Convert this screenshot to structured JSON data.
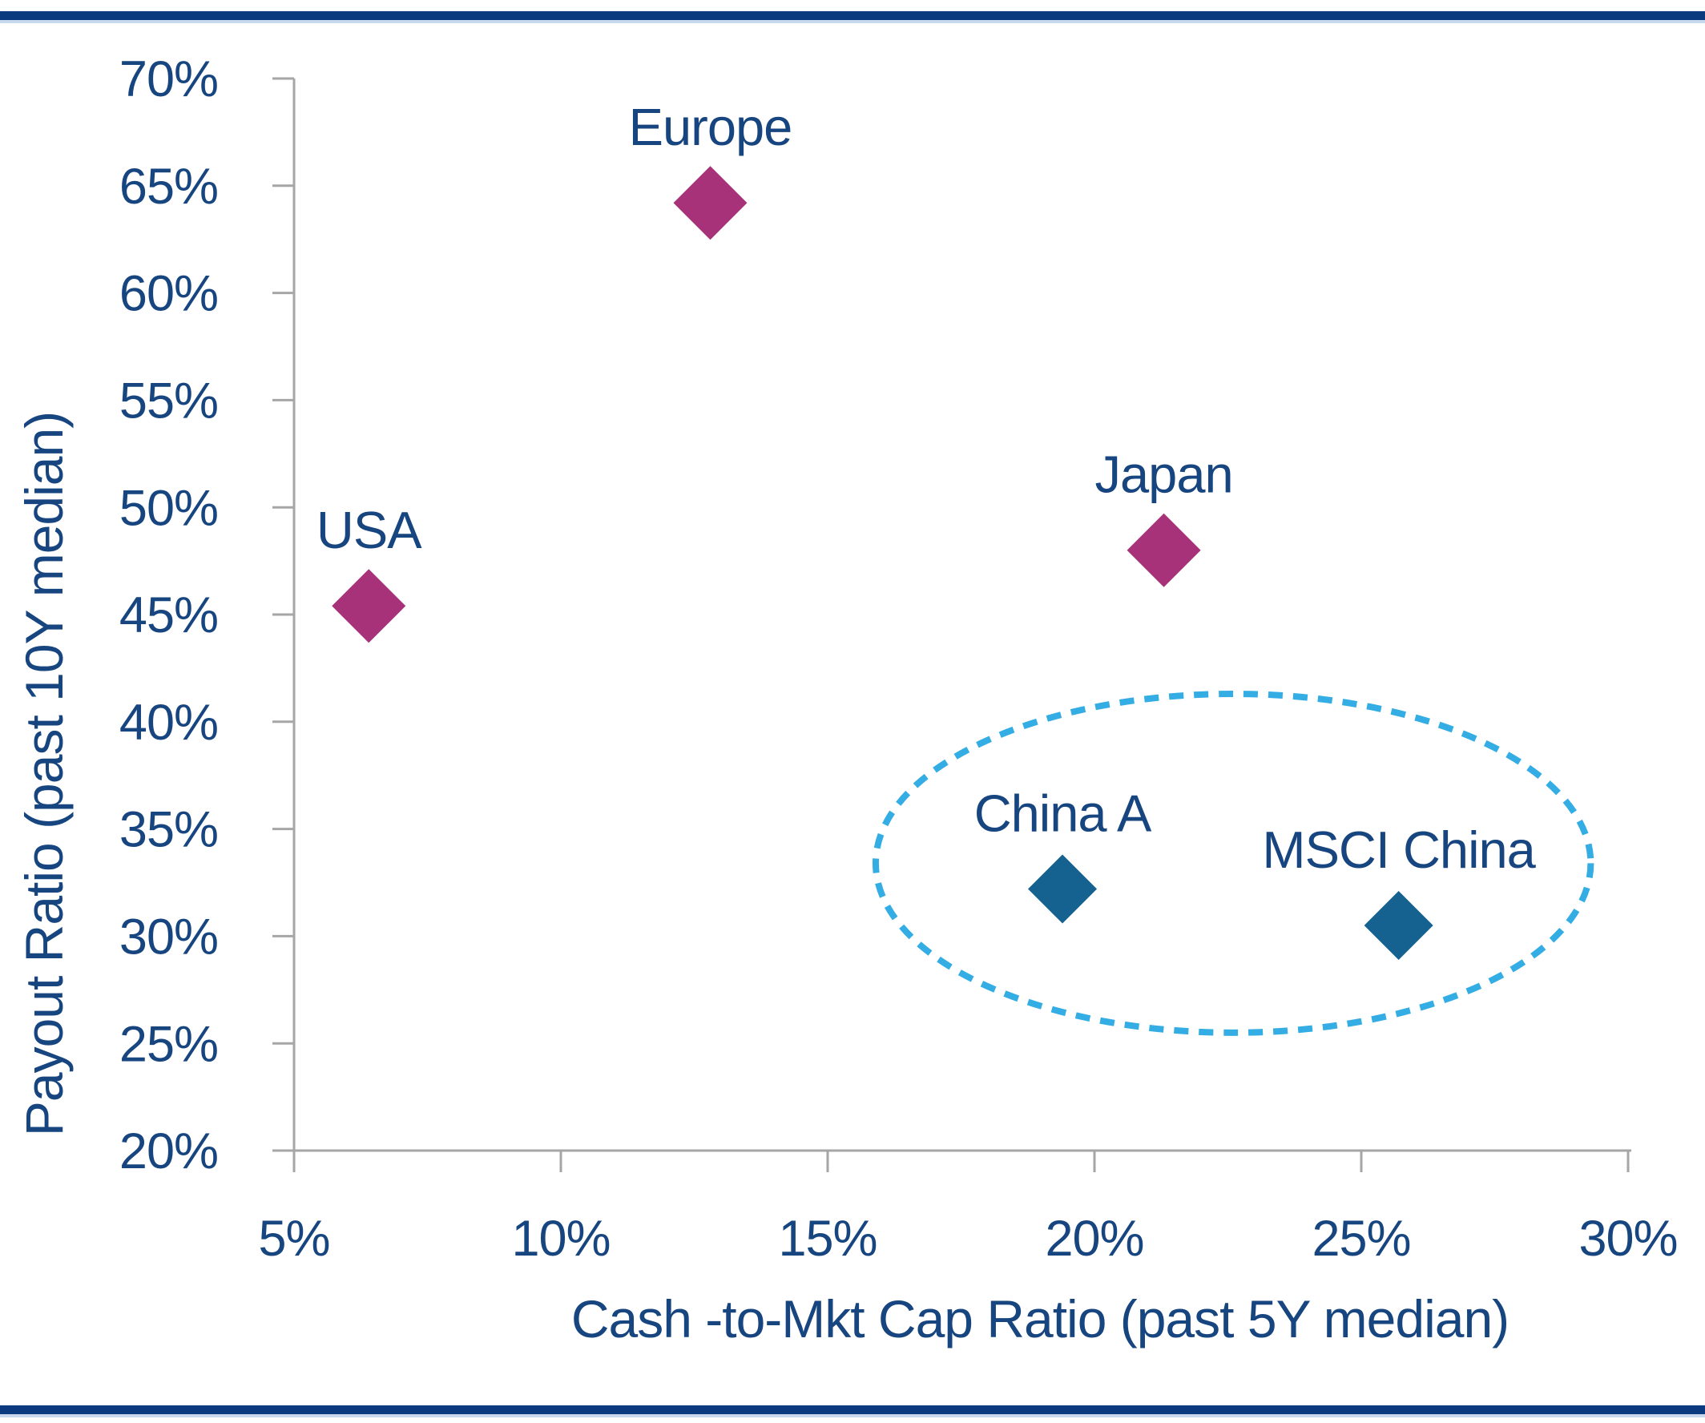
{
  "frame": {
    "accent_bar_color": "#0C3A7E",
    "accent_bar_edge_color": "#C9D9ED",
    "background_color": "#FFFFFF"
  },
  "chart_data": {
    "type": "scatter",
    "title": "",
    "xlabel": "Cash -to-Mkt Cap Ratio (past 5Y median)",
    "ylabel": "Payout Ratio (past 10Y median)",
    "xlim": [
      5,
      30
    ],
    "ylim": [
      20,
      70
    ],
    "x_tick_values": [
      5,
      10,
      15,
      20,
      25,
      30
    ],
    "x_tick_labels": [
      "5%",
      "10%",
      "15%",
      "20%",
      "25%",
      "30%"
    ],
    "y_tick_values": [
      70,
      65,
      60,
      55,
      50,
      45,
      40,
      35,
      30,
      25,
      20
    ],
    "y_tick_labels": [
      "70%",
      "65%",
      "60%",
      "55%",
      "50%",
      "45%",
      "40%",
      "35%",
      "30%",
      "25%",
      "20%"
    ],
    "axis_color": "#A6A6A6",
    "text_color": "#17457F",
    "grid": false,
    "legend": false,
    "series": [
      {
        "name": "developed-markets",
        "marker": "diamond",
        "color": "#A73279",
        "marker_px": 92,
        "points": [
          {
            "label": "USA",
            "x": 6.4,
            "y": 45.4
          },
          {
            "label": "Europe",
            "x": 12.8,
            "y": 64.2
          },
          {
            "label": "Japan",
            "x": 21.3,
            "y": 48.0
          }
        ]
      },
      {
        "name": "china",
        "marker": "diamond",
        "color": "#156190",
        "marker_px": 86,
        "points": [
          {
            "label": "China A",
            "x": 19.4,
            "y": 32.2
          },
          {
            "label": "MSCI China",
            "x": 25.7,
            "y": 30.5
          }
        ]
      }
    ],
    "annotations": [
      {
        "type": "ellipse",
        "style": "dashed",
        "color": "#33ADE3",
        "cx": 22.6,
        "cy": 33.4,
        "rx": 6.7,
        "ry": 7.9,
        "label": "highlight-china-group"
      }
    ]
  }
}
